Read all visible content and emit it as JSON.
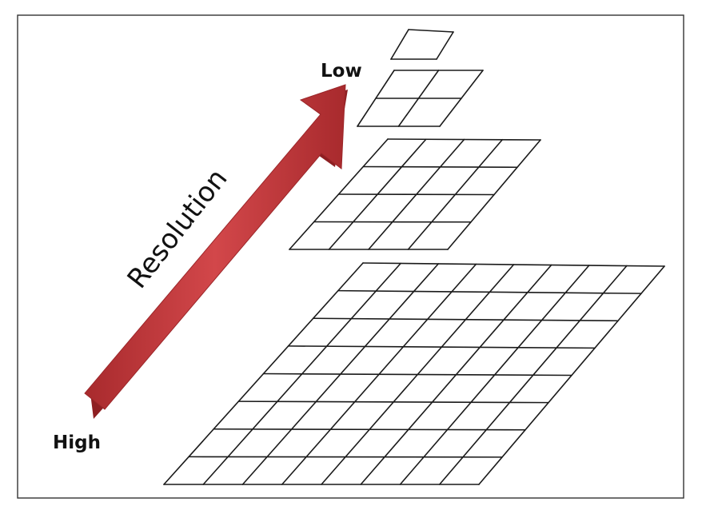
{
  "labels": {
    "low": "Low",
    "high": "High",
    "axis": "Resolution"
  },
  "colors": {
    "arrow_fill": "#c0393b",
    "arrow_shadow": "#8e1f22",
    "grid_stroke": "#1a1a1a",
    "frame_stroke": "#333333"
  },
  "pyramid_levels": [
    {
      "level": "lowest",
      "columns": 1,
      "rows": 1
    },
    {
      "level": "low",
      "columns": 2,
      "rows": 2
    },
    {
      "level": "medium",
      "columns": 4,
      "rows": 4
    },
    {
      "level": "high",
      "columns": 8,
      "rows": 8
    }
  ]
}
